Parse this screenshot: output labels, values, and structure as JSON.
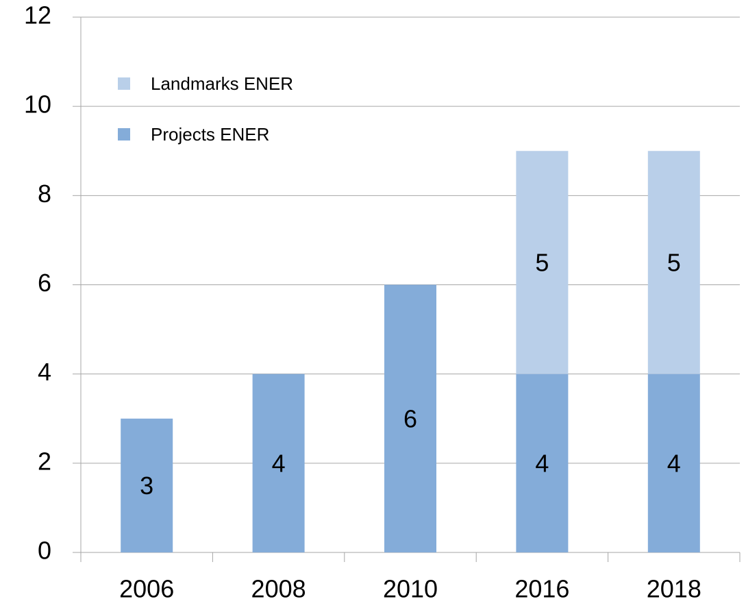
{
  "chart_data": {
    "type": "stacked_bar",
    "categories": [
      "2006",
      "2008",
      "2010",
      "2016",
      "2018"
    ],
    "series": [
      {
        "name": "Projects ENER",
        "color": "#84acd9",
        "values": [
          3,
          4,
          6,
          4,
          4
        ]
      },
      {
        "name": "Landmarks ENER",
        "color": "#b9cfe9",
        "values": [
          0,
          0,
          0,
          5,
          5
        ]
      }
    ],
    "ylim": [
      0,
      12
    ],
    "yticks": [
      0,
      2,
      4,
      6,
      8,
      10,
      12
    ],
    "grid": true,
    "legend": "upper-left"
  }
}
